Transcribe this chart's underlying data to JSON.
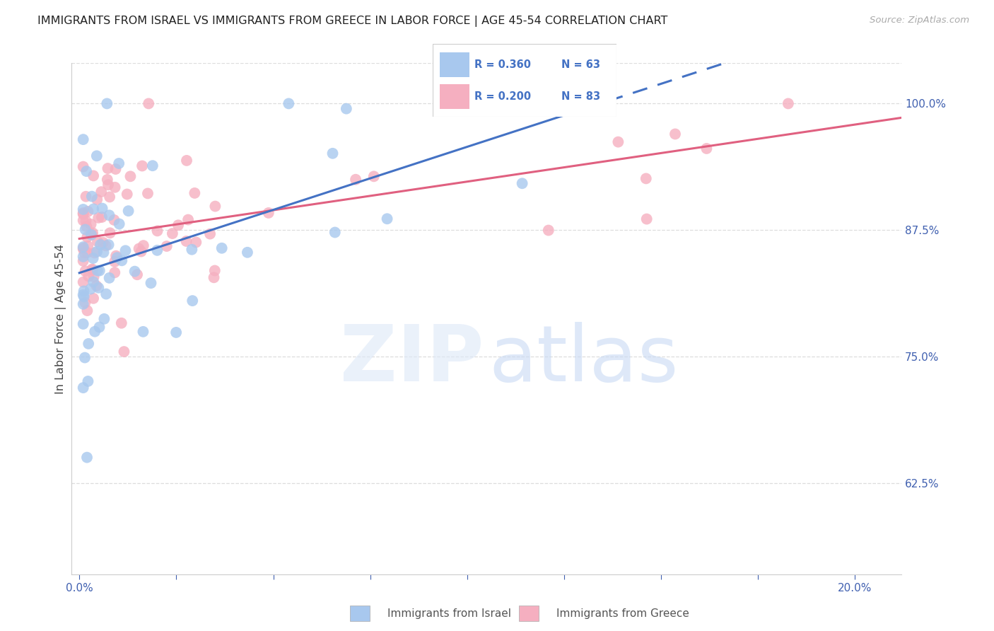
{
  "title": "IMMIGRANTS FROM ISRAEL VS IMMIGRANTS FROM GREECE IN LABOR FORCE | AGE 45-54 CORRELATION CHART",
  "source": "Source: ZipAtlas.com",
  "ylabel": "In Labor Force | Age 45-54",
  "israel_R": 0.36,
  "israel_N": 63,
  "greece_R": 0.2,
  "greece_N": 83,
  "israel_color": "#a8c8ee",
  "greece_color": "#f5afc0",
  "trend_israel_color": "#4472c4",
  "trend_greece_color": "#e06080",
  "right_yticks": [
    0.625,
    0.75,
    0.875,
    1.0
  ],
  "right_yticklabels": [
    "62.5%",
    "75.0%",
    "87.5%",
    "100.0%"
  ],
  "ymin": 0.535,
  "ymax": 1.04,
  "xmin": -0.002,
  "xmax": 0.212,
  "axis_label_color": "#4060b0",
  "bottom_legend_israel": "Immigrants from Israel",
  "bottom_legend_greece": "Immigrants from Greece",
  "legend_text_color": "#4472c4",
  "grid_color": "#dddddd",
  "spine_color": "#cccccc"
}
